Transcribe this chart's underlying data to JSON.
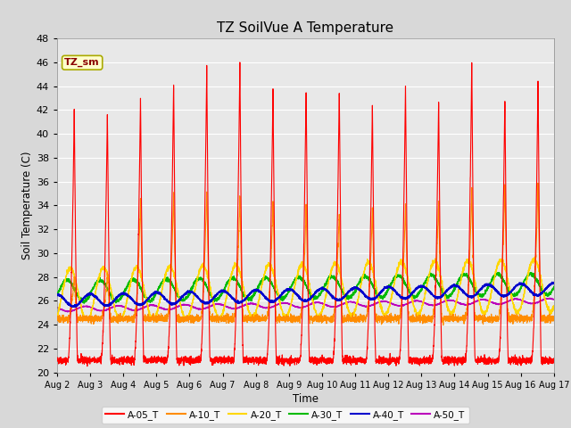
{
  "title": "TZ SoilVue A Temperature",
  "ylabel": "Soil Temperature (C)",
  "xlabel": "Time",
  "ylim": [
    20,
    48
  ],
  "yticks": [
    20,
    22,
    24,
    26,
    28,
    30,
    32,
    34,
    36,
    38,
    40,
    42,
    44,
    46,
    48
  ],
  "x_tick_labels": [
    "Aug 2",
    "Aug 3",
    "Aug 4",
    "Aug 5",
    "Aug 6",
    "Aug 7",
    "Aug 8",
    "Aug 9",
    "Aug 10",
    "Aug 11",
    "Aug 12",
    "Aug 13",
    "Aug 14",
    "Aug 15",
    "Aug 16",
    "Aug 17"
  ],
  "legend_label": "TZ_sm",
  "series_colors": {
    "A-05_T": "#FF0000",
    "A-10_T": "#FF8C00",
    "A-20_T": "#FFD700",
    "A-30_T": "#00BB00",
    "A-40_T": "#0000CC",
    "A-50_T": "#BB00BB"
  },
  "series_labels": [
    "A-05_T",
    "A-10_T",
    "A-20_T",
    "A-30_T",
    "A-40_T",
    "A-50_T"
  ],
  "bg_color": "#E8E8E8",
  "grid_color": "#FFFFFF",
  "n_days": 15,
  "points_per_day": 288,
  "peak_heights_05": [
    42.2,
    42.0,
    43.2,
    44.4,
    45.8,
    46.2,
    44.0,
    43.8,
    43.7,
    42.5,
    44.2,
    43.0,
    46.3,
    43.2,
    44.7
  ],
  "peak_heights_10": [
    28.0,
    28.2,
    34.5,
    35.0,
    35.5,
    35.0,
    34.5,
    33.8,
    33.5,
    33.8,
    34.0,
    34.5,
    35.5,
    36.0,
    36.0
  ],
  "valley_05": 21.0,
  "valley_10": 24.5,
  "base_20": 26.5,
  "amp_20": 2.2,
  "base_30": 26.8,
  "amp_30": 0.9,
  "base_40": 26.0,
  "amp_40": 0.5,
  "base_50": 25.3,
  "amp_50": 0.2,
  "figwidth": 6.4,
  "figheight": 4.8,
  "dpi": 100
}
